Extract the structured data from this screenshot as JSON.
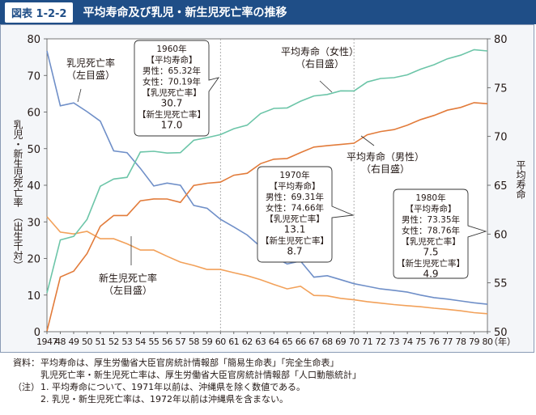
{
  "header": {
    "fig_no": "図表 1-2-2",
    "title": "平均寿命及び乳児・新生児死亡率の推移"
  },
  "chart_data": {
    "type": "line",
    "x": [
      1947,
      1948,
      1949,
      1950,
      1951,
      1952,
      1953,
      1954,
      1955,
      1956,
      1957,
      1958,
      1959,
      1960,
      1961,
      1962,
      1963,
      1964,
      1965,
      1966,
      1967,
      1968,
      1969,
      1970,
      1971,
      1972,
      1973,
      1974,
      1975,
      1976,
      1977,
      1978,
      1979,
      1980
    ],
    "x_tick_labels": [
      "1947",
      "48",
      "49",
      "50",
      "51",
      "52",
      "53",
      "54",
      "55",
      "56",
      "57",
      "58",
      "59",
      "60",
      "61",
      "62",
      "63",
      "64",
      "65",
      "66",
      "67",
      "68",
      "69",
      "70",
      "71",
      "72",
      "73",
      "74",
      "75",
      "76",
      "77",
      "78",
      "79",
      "80"
    ],
    "x_unit": "（年）",
    "left_axis": {
      "label": "乳児・新生児死亡率　（出生千対）",
      "ylim": [
        0,
        80
      ],
      "ticks": [
        0,
        10,
        20,
        30,
        40,
        50,
        60,
        70,
        80
      ]
    },
    "right_axis": {
      "label": "平均寿命",
      "ylim": [
        50,
        80
      ],
      "ticks": [
        50,
        55,
        60,
        65,
        70,
        75,
        80
      ]
    },
    "series": [
      {
        "name": "乳児死亡率",
        "axis": "left",
        "color": "#6f8fc8",
        "values": [
          76.7,
          61.7,
          62.5,
          60.1,
          57.5,
          49.4,
          48.9,
          44.6,
          39.8,
          40.6,
          40.0,
          34.5,
          33.7,
          30.7,
          28.6,
          26.4,
          23.2,
          20.4,
          18.5,
          19.3,
          14.9,
          15.3,
          14.2,
          13.1,
          12.4,
          11.7,
          11.3,
          10.8,
          10.0,
          9.3,
          8.9,
          8.4,
          7.9,
          7.5
        ]
      },
      {
        "name": "新生児死亡率",
        "axis": "left",
        "color": "#f2a15a",
        "values": [
          31.4,
          27.2,
          26.7,
          27.4,
          25.4,
          25.4,
          24.0,
          22.3,
          22.3,
          20.6,
          19.0,
          18.1,
          17.0,
          17.0,
          16.1,
          15.3,
          14.2,
          12.9,
          11.7,
          12.4,
          9.9,
          9.8,
          9.1,
          8.7,
          8.2,
          7.8,
          7.4,
          7.1,
          6.8,
          6.4,
          6.1,
          5.7,
          5.2,
          4.9
        ]
      },
      {
        "name": "平均寿命（女性）",
        "axis": "right",
        "color": "#6cc5a8",
        "values": [
          53.96,
          59.4,
          59.76,
          61.5,
          64.9,
          65.64,
          65.81,
          68.41,
          68.48,
          68.3,
          68.34,
          69.61,
          69.88,
          70.19,
          70.79,
          71.16,
          72.34,
          72.87,
          72.92,
          73.61,
          74.15,
          74.3,
          74.67,
          74.66,
          75.58,
          75.94,
          76.02,
          76.31,
          76.89,
          77.35,
          77.95,
          78.33,
          78.89,
          78.76
        ]
      },
      {
        "name": "平均寿命（男性）",
        "axis": "right",
        "color": "#e27b3a",
        "values": [
          50.06,
          55.6,
          56.2,
          58.0,
          60.8,
          61.9,
          61.9,
          63.41,
          63.6,
          63.59,
          63.24,
          64.98,
          65.21,
          65.32,
          66.03,
          66.23,
          67.21,
          67.67,
          67.74,
          68.35,
          68.91,
          69.05,
          69.18,
          69.31,
          70.17,
          70.5,
          70.7,
          71.16,
          71.73,
          72.15,
          72.69,
          72.97,
          73.46,
          73.35
        ]
      }
    ],
    "grid": false,
    "reference_lines_x": [
      1960,
      1970
    ],
    "series_labels": [
      {
        "lines": [
          "乳児死亡率",
          "（左目盛）"
        ]
      },
      {
        "lines": [
          "新生児死亡率",
          "（左目盛）"
        ]
      },
      {
        "lines": [
          "平均寿命（女性）",
          "（右目盛）"
        ]
      },
      {
        "lines": [
          "平均寿命（男性）",
          "（右目盛）"
        ]
      }
    ],
    "callouts": [
      {
        "year": 1960,
        "lines": [
          "1960年",
          "【平均寿命】",
          "男性：65.32年",
          "女性：70.19年",
          "【乳児死亡率】",
          "30.7",
          "【新生児死亡率】",
          "17.0"
        ]
      },
      {
        "year": 1970,
        "lines": [
          "1970年",
          "【平均寿命】",
          "男性：69.31年",
          "女性：74.66年",
          "【乳児死亡率】",
          "13.1",
          "【新生児死亡率】",
          "8.7"
        ]
      },
      {
        "year": 1980,
        "lines": [
          "1980年",
          "【平均寿命】",
          "男性：73.35年",
          "女性：78.76年",
          "【乳児死亡率】",
          "7.5",
          "【新生児死亡率】",
          "4.9"
        ]
      }
    ]
  },
  "notes": {
    "source_label": "資料：",
    "source_lines": [
      "平均寿命は、厚生労働省大臣官房統計情報部「簡易生命表」「完全生命表」",
      "乳児死亡率・新生児死亡率は、厚生労働省大臣官房統計情報部「人口動態統計」"
    ],
    "note_label": "（注）",
    "note_lines": [
      "1.  平均寿命について、1971年以前は、沖縄県を除く数値である。",
      "2.  乳児・新生児死亡率は、1972年以前は沖縄県を含まない。"
    ]
  }
}
